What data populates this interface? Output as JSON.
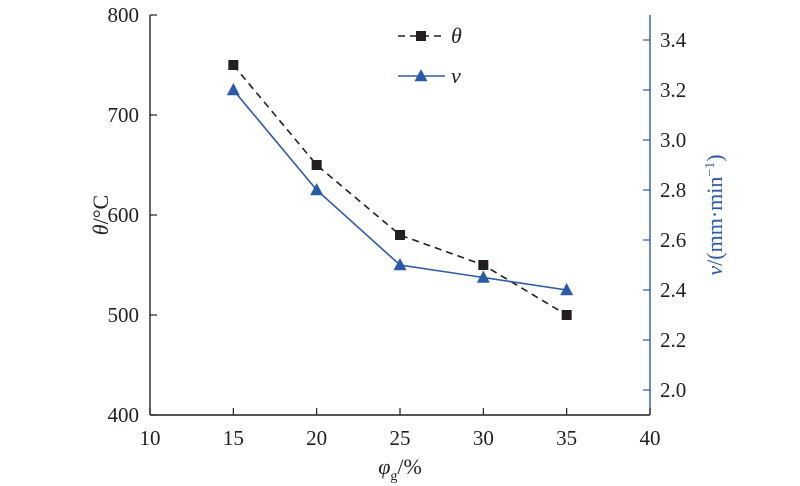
{
  "chart_data": {
    "type": "line",
    "x": [
      15,
      20,
      25,
      30,
      35
    ],
    "xlabel_symbol": "φ",
    "xlabel_sub": "g",
    "xlabel_unit": "/%",
    "xlim": [
      10,
      40
    ],
    "xticks": [
      10,
      15,
      20,
      25,
      30,
      35,
      40
    ],
    "ylabel_symbol": "θ",
    "ylabel_unit": "/°C",
    "ylim": [
      400,
      800
    ],
    "yticks": [
      400,
      500,
      600,
      700,
      800
    ],
    "y2label_symbol": "v",
    "y2label_unit": "/(mm·min",
    "y2label_sup": "−1",
    "y2label_close": ")",
    "y2lim": [
      1.9,
      3.5
    ],
    "y2ticks": [
      "2.0",
      "2.2",
      "2.4",
      "2.6",
      "2.8",
      "3.0",
      "3.2",
      "3.4"
    ],
    "series": [
      {
        "name": "θ",
        "axis": "left",
        "values": [
          750,
          650,
          580,
          550,
          500
        ],
        "color": "#231f20",
        "marker": "square",
        "dash": true
      },
      {
        "name": "v",
        "axis": "right",
        "values": [
          3.2,
          2.8,
          2.5,
          2.45,
          2.4
        ],
        "color": "#2b5aa8",
        "marker": "triangle",
        "dash": false
      }
    ],
    "legend": [
      "θ",
      "v"
    ],
    "legend_position": "top-center"
  }
}
